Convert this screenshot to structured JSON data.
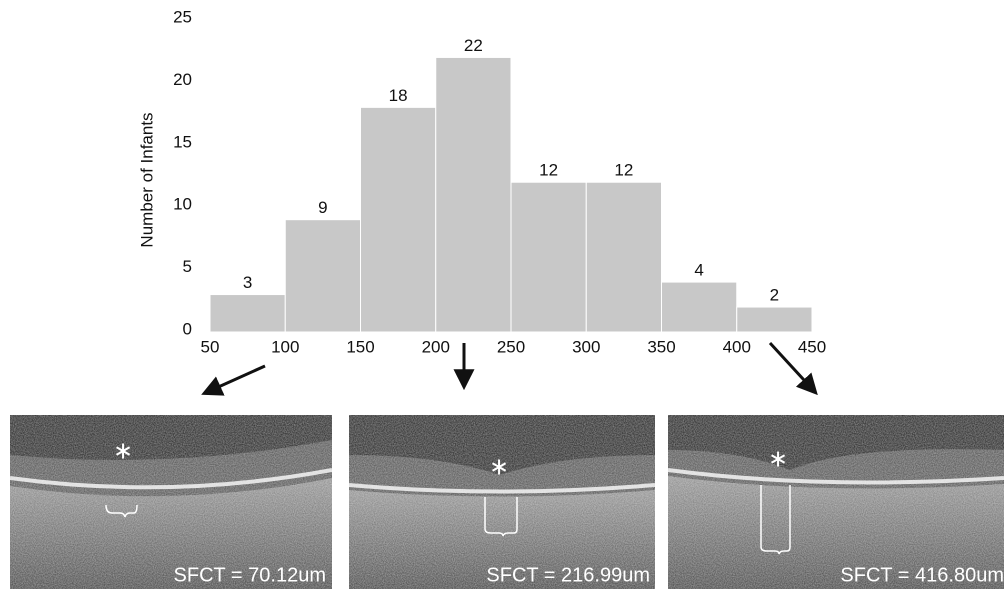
{
  "chart_data": {
    "type": "histogram",
    "y_label": "Number of Infants",
    "bins": [
      50,
      100,
      150,
      200,
      250,
      300,
      350,
      400,
      450
    ],
    "values": [
      3,
      9,
      18,
      22,
      12,
      12,
      4,
      2
    ],
    "color": "#c8c8c8",
    "xlim": [
      50,
      450
    ],
    "xticks": [
      50,
      100,
      150,
      200,
      250,
      300,
      350,
      400,
      450
    ],
    "ylim": [
      0,
      25
    ],
    "yticks": [
      0,
      5,
      10,
      15,
      20,
      25
    ],
    "annotations": [
      "SFCT = 70.12um",
      "SFCT = 216.99um",
      "SFCT = 416.80um"
    ]
  }
}
